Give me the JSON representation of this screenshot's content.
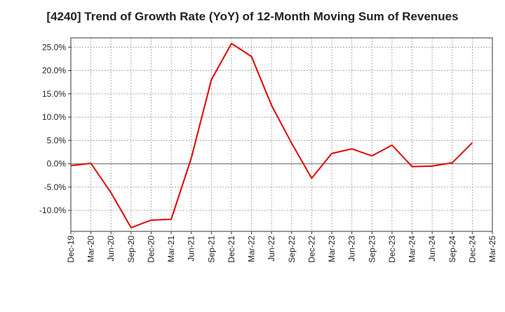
{
  "chart_data": {
    "type": "line",
    "title": "[4240]  Trend of Growth Rate (YoY) of 12-Month Moving Sum of Revenues",
    "xlabel": "",
    "ylabel": "",
    "x_tick_labels": [
      "Dec-19",
      "Mar-20",
      "Jun-20",
      "Sep-20",
      "Dec-20",
      "Mar-21",
      "Jun-21",
      "Sep-21",
      "Dec-21",
      "Mar-22",
      "Jun-22",
      "Sep-22",
      "Dec-22",
      "Mar-23",
      "Jun-23",
      "Sep-23",
      "Dec-23",
      "Mar-24",
      "Jun-24",
      "Sep-24",
      "Dec-24",
      "Mar-25"
    ],
    "y_tick_labels": [
      "25.0%",
      "20.0%",
      "15.0%",
      "10.0%",
      "5.0%",
      "0.0%",
      "-5.0%",
      "-10.0%"
    ],
    "y_ticks": [
      25,
      20,
      15,
      10,
      5,
      0,
      -5,
      -10
    ],
    "ylim": [
      -14.5,
      27
    ],
    "grid": true,
    "line_color": "#e60000",
    "series": [
      {
        "x": [
          "Dec-19",
          "Mar-20",
          "Jun-20",
          "Sep-20",
          "Dec-20",
          "Mar-21",
          "Jun-21",
          "Sep-21",
          "Dec-21",
          "Mar-22",
          "Jun-22",
          "Sep-22",
          "Dec-22",
          "Mar-23",
          "Jun-23",
          "Sep-23",
          "Dec-23",
          "Mar-24",
          "Jun-24",
          "Sep-24",
          "Dec-24"
        ],
        "values": [
          -0.4,
          0.1,
          -6.2,
          -13.7,
          -12.1,
          -11.9,
          1.2,
          18.0,
          25.8,
          23.0,
          12.5,
          4.4,
          -3.1,
          2.2,
          3.2,
          1.7,
          4.0,
          -0.6,
          -0.5,
          0.2,
          4.5
        ]
      }
    ]
  }
}
